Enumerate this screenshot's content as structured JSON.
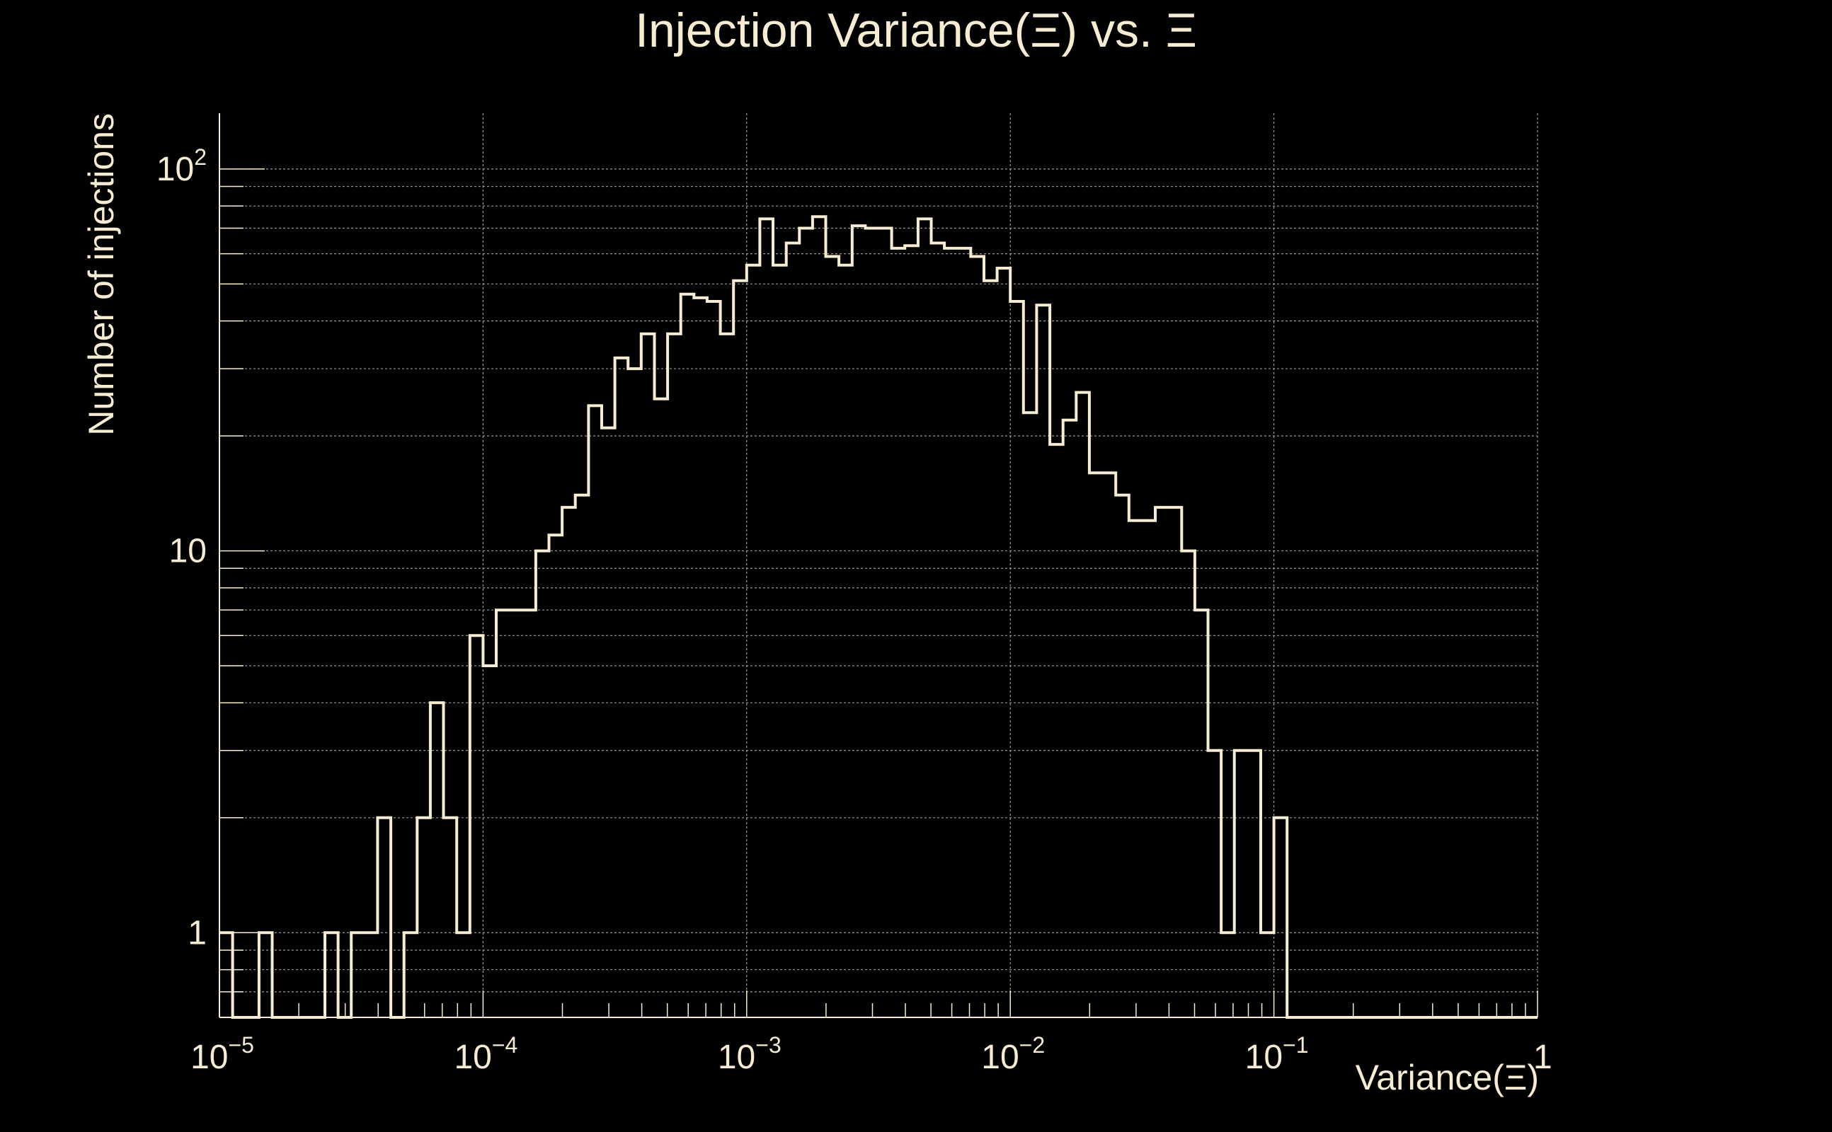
{
  "colors": {
    "background": "#000000",
    "foreground": "#f5ecd2",
    "grid": "#9a9a9a"
  },
  "chart_data": {
    "type": "histogram",
    "title": "Injection Variance(Ξ) vs. Ξ",
    "xlabel": "Variance(Ξ)",
    "ylabel": "Number of injections",
    "x_scale": "log",
    "y_scale": "log",
    "xlim": [
      1e-05,
      1
    ],
    "ylim": [
      0.6,
      140
    ],
    "grid": true,
    "x_ticks": [
      {
        "value": 1e-05,
        "base": "10",
        "exp": "−5"
      },
      {
        "value": 0.0001,
        "base": "10",
        "exp": "−4"
      },
      {
        "value": 0.001,
        "base": "10",
        "exp": "−3"
      },
      {
        "value": 0.01,
        "base": "10",
        "exp": "−2"
      },
      {
        "value": 0.1,
        "base": "10",
        "exp": "−1"
      },
      {
        "value": 1,
        "base": "1",
        "exp": ""
      }
    ],
    "y_ticks": [
      {
        "value": 1,
        "base": "1",
        "exp": ""
      },
      {
        "value": 10,
        "base": "10",
        "exp": ""
      },
      {
        "value": 100,
        "base": "10",
        "exp": "2"
      }
    ],
    "bin_edges_log10": {
      "start": -5,
      "stop": 0,
      "count": 100
    },
    "values": [
      1,
      0,
      0,
      1,
      0,
      0,
      0,
      0,
      1,
      0,
      1,
      1,
      2,
      0,
      1,
      2,
      4,
      2,
      1,
      6,
      5,
      7,
      7,
      7,
      10,
      11,
      13,
      14,
      24,
      21,
      32,
      30,
      37,
      25,
      37,
      47,
      46,
      45,
      37,
      51,
      56,
      74,
      56,
      64,
      70,
      75,
      59,
      56,
      71,
      70,
      70,
      62,
      63,
      74,
      64,
      62,
      62,
      59,
      51,
      55,
      45,
      23,
      44,
      19,
      22,
      26,
      16,
      16,
      14,
      12,
      12,
      13,
      13,
      10,
      7,
      3,
      1,
      3,
      3,
      1,
      2,
      0,
      0,
      0,
      0,
      0,
      0,
      0,
      0,
      0,
      0,
      0,
      0,
      0,
      0,
      0,
      0,
      0,
      0,
      0
    ]
  }
}
